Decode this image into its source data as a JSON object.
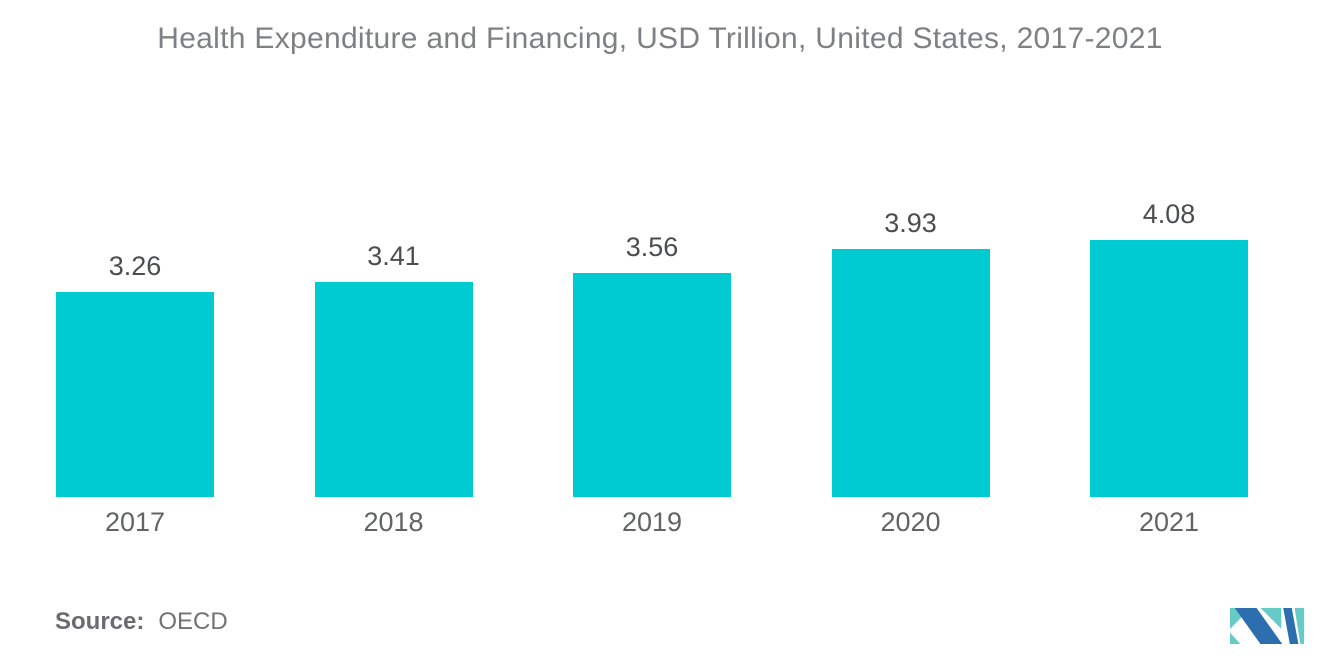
{
  "title": "Health Expenditure and Financing, USD Trillion, United States, 2017-2021",
  "source": {
    "label": "Source:",
    "value": "OECD"
  },
  "colors": {
    "bar": "#00CBD2",
    "title_text": "#7F8083",
    "value_text": "#4C4D4F",
    "axis_text": "#626366",
    "source_text": "#717275",
    "source_label_text": "#6B6C6F",
    "logo_blue": "#2D6EAF",
    "logo_teal": "#66CBC6"
  },
  "chart_data": {
    "type": "bar",
    "title": "Health Expenditure and Financing, USD Trillion, United States, 2017-2021",
    "categories": [
      "2017",
      "2018",
      "2019",
      "2020",
      "2021"
    ],
    "values": [
      3.26,
      3.41,
      3.56,
      3.93,
      4.08
    ],
    "data_labels": [
      "3.26",
      "3.41",
      "3.56",
      "3.93",
      "4.08"
    ],
    "xlabel": "",
    "ylabel": "",
    "ylim": [
      0,
      4.3
    ],
    "grid": false,
    "legend": "none",
    "y_axis_visible": false,
    "source": "OECD"
  }
}
